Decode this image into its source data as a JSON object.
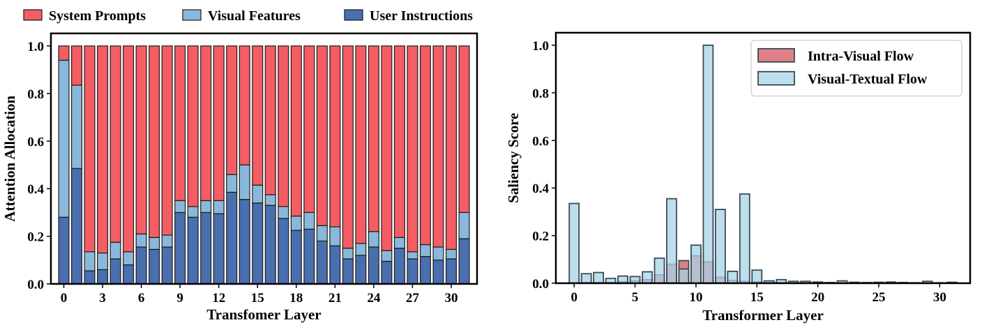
{
  "chart_data": [
    {
      "type": "bar",
      "stacked": true,
      "xlabel": "Transfomer Layer",
      "ylabel": "Attention Allocation",
      "ylim": [
        0,
        1.0
      ],
      "xlim": [
        -1,
        32
      ],
      "x_ticks": [
        0,
        3,
        6,
        9,
        12,
        15,
        18,
        21,
        24,
        27,
        30
      ],
      "y_ticks": [
        0.0,
        0.2,
        0.4,
        0.6,
        0.8,
        1.0
      ],
      "legend_position": "top-outside",
      "x": [
        0,
        1,
        2,
        3,
        4,
        5,
        6,
        7,
        8,
        9,
        10,
        11,
        12,
        13,
        14,
        15,
        16,
        17,
        18,
        19,
        20,
        21,
        22,
        23,
        24,
        25,
        26,
        27,
        28,
        29,
        30,
        31
      ],
      "series": [
        {
          "name": "User Instructions",
          "color": "#4A6FAE",
          "values": [
            0.28,
            0.485,
            0.055,
            0.06,
            0.105,
            0.08,
            0.155,
            0.145,
            0.155,
            0.3,
            0.28,
            0.3,
            0.295,
            0.385,
            0.355,
            0.34,
            0.33,
            0.275,
            0.225,
            0.23,
            0.18,
            0.16,
            0.105,
            0.12,
            0.155,
            0.095,
            0.15,
            0.105,
            0.115,
            0.1,
            0.105,
            0.19
          ]
        },
        {
          "name": "Visual Features",
          "color": "#8AB8DA",
          "values": [
            0.66,
            0.35,
            0.08,
            0.07,
            0.07,
            0.055,
            0.055,
            0.05,
            0.05,
            0.05,
            0.045,
            0.05,
            0.055,
            0.075,
            0.145,
            0.075,
            0.045,
            0.05,
            0.06,
            0.07,
            0.065,
            0.08,
            0.045,
            0.05,
            0.065,
            0.045,
            0.045,
            0.03,
            0.05,
            0.055,
            0.04,
            0.11
          ]
        },
        {
          "name": "System Prompts",
          "color": "#F45D63",
          "values": [
            0.06,
            0.165,
            0.865,
            0.87,
            0.825,
            0.865,
            0.79,
            0.805,
            0.795,
            0.65,
            0.675,
            0.65,
            0.65,
            0.54,
            0.5,
            0.585,
            0.625,
            0.675,
            0.715,
            0.7,
            0.755,
            0.76,
            0.85,
            0.83,
            0.78,
            0.86,
            0.805,
            0.865,
            0.835,
            0.845,
            0.855,
            0.7
          ]
        }
      ]
    },
    {
      "type": "bar",
      "overlay": true,
      "xlabel": "Transformer Layer",
      "ylabel": "Saliency Score",
      "ylim": [
        0,
        1.0
      ],
      "xlim": [
        -1.5,
        32.5
      ],
      "x_ticks": [
        0,
        5,
        10,
        15,
        20,
        25,
        30
      ],
      "y_ticks": [
        0.0,
        0.2,
        0.4,
        0.6,
        0.8,
        1.0
      ],
      "legend_position": "top-right",
      "x": [
        0,
        1,
        2,
        3,
        4,
        5,
        6,
        7,
        8,
        9,
        10,
        11,
        12,
        13,
        14,
        15,
        16,
        17,
        18,
        19,
        20,
        21,
        22,
        23,
        24,
        25,
        26,
        27,
        28,
        29,
        30,
        31
      ],
      "series": [
        {
          "name": "Intra-Visual Flow",
          "color": "#D9727A",
          "values": [
            0.0,
            0.003,
            0.003,
            0.003,
            0.006,
            0.01,
            0.015,
            0.035,
            0.08,
            0.095,
            0.115,
            0.09,
            0.025,
            0.012,
            0.008,
            0.006,
            0.003,
            0.003,
            0.002,
            0.002,
            0.002,
            0.002,
            0.002,
            0.001,
            0.001,
            0.001,
            0.001,
            0.001,
            0.001,
            0.001,
            0.001,
            0.001
          ]
        },
        {
          "name": "Visual-Textual Flow",
          "color": "#A7D3E7",
          "values": [
            0.335,
            0.04,
            0.045,
            0.02,
            0.03,
            0.028,
            0.048,
            0.105,
            0.355,
            0.06,
            0.16,
            1.0,
            0.31,
            0.05,
            0.375,
            0.055,
            0.01,
            0.015,
            0.008,
            0.008,
            0.005,
            0.003,
            0.01,
            0.004,
            0.003,
            0.004,
            0.005,
            0.003,
            0.002,
            0.008,
            0.002,
            0.004
          ]
        }
      ]
    }
  ]
}
